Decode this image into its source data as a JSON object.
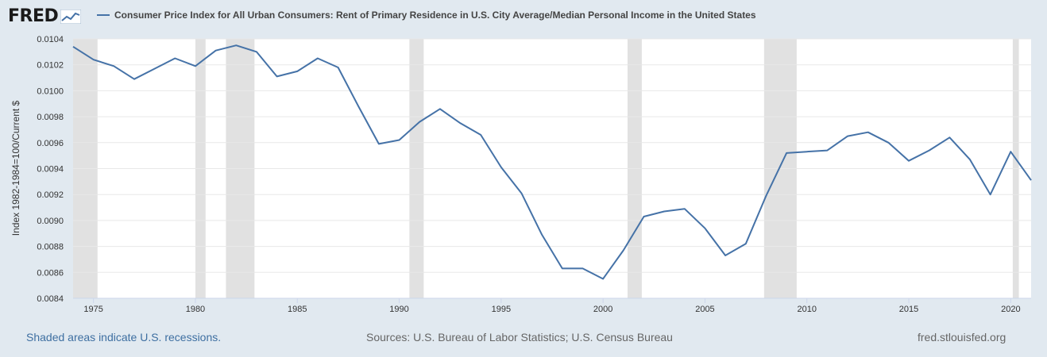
{
  "header": {
    "logo_text": "FRED",
    "logo_icon": "chart-line-icon",
    "series_title": "Consumer Price Index for All Urban Consumers: Rent of Primary Residence in U.S. City Average/Median Personal Income in the United States"
  },
  "footer": {
    "recession_note": "Shaded areas indicate U.S. recessions.",
    "sources": "Sources: U.S. Bureau of Labor Statistics; U.S. Census Bureau",
    "site": "fred.stlouisfed.org"
  },
  "colors": {
    "series": "#4572a7",
    "recession": "#e1e1e1",
    "grid": "#e8e8e8",
    "background": "#e1e9f0"
  },
  "chart_data": {
    "type": "line",
    "title": "",
    "ylabel": "Index 1982-1984=100/Current $",
    "xlabel": "",
    "ylim": [
      0.0084,
      0.0104
    ],
    "xlim": [
      1974,
      2021
    ],
    "yticks": [
      "0.0084",
      "0.0086",
      "0.0088",
      "0.0090",
      "0.0092",
      "0.0094",
      "0.0096",
      "0.0098",
      "0.0100",
      "0.0102",
      "0.0104"
    ],
    "xticks": [
      "1975",
      "1980",
      "1985",
      "1990",
      "1995",
      "2000",
      "2005",
      "2010",
      "2015",
      "2020"
    ],
    "grid": true,
    "recessions": [
      [
        1974.0,
        1975.2
      ],
      [
        1980.0,
        1980.5
      ],
      [
        1981.5,
        1982.9
      ],
      [
        1990.5,
        1991.2
      ],
      [
        2001.2,
        2001.9
      ],
      [
        2007.9,
        2009.5
      ],
      [
        2020.1,
        2020.4
      ]
    ],
    "series": [
      {
        "x": [
          1974,
          1975,
          1976,
          1977,
          1978,
          1979,
          1980,
          1981,
          1982,
          1983,
          1984,
          1985,
          1986,
          1987,
          1988,
          1989,
          1990,
          1991,
          1992,
          1993,
          1994,
          1995,
          1996,
          1997,
          1998,
          1999,
          2000,
          2001,
          2002,
          2003,
          2004,
          2005,
          2006,
          2007,
          2008,
          2009,
          2010,
          2011,
          2012,
          2013,
          2014,
          2015,
          2016,
          2017,
          2018,
          2019,
          2020,
          2021
        ],
        "values": [
          0.01034,
          0.01024,
          0.01019,
          0.01009,
          0.01017,
          0.01025,
          0.01019,
          0.01031,
          0.01035,
          0.0103,
          0.01011,
          0.01015,
          0.01025,
          0.01018,
          0.00988,
          0.00959,
          0.00962,
          0.00976,
          0.00986,
          0.00975,
          0.00966,
          0.00941,
          0.00921,
          0.00889,
          0.00863,
          0.00863,
          0.00855,
          0.00877,
          0.00903,
          0.00907,
          0.00909,
          0.00894,
          0.00873,
          0.00882,
          0.00919,
          0.00952,
          0.00953,
          0.00954,
          0.00965,
          0.00968,
          0.0096,
          0.00946,
          0.00954,
          0.00964,
          0.00947,
          0.0092,
          0.00953,
          0.00931
        ]
      }
    ]
  }
}
